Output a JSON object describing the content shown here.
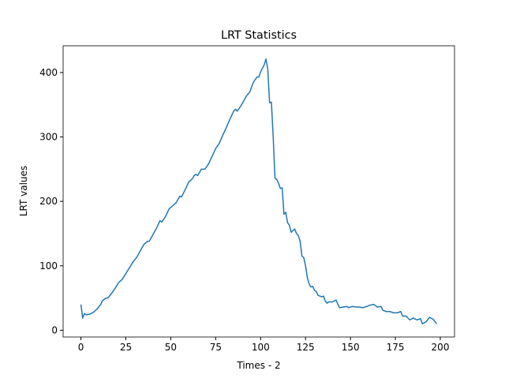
{
  "chart_data": {
    "type": "line",
    "title": "LRT Statistics",
    "x_label": "Times - 2",
    "y_label": "LRT values",
    "x": [
      0,
      1,
      2,
      3,
      5,
      7,
      9,
      11,
      12,
      14,
      15,
      17,
      19,
      21,
      23,
      25,
      27,
      29,
      31,
      33,
      35,
      37,
      38,
      40,
      42,
      44,
      45,
      47,
      49,
      51,
      53,
      55,
      56,
      58,
      60,
      62,
      63,
      64,
      65,
      67,
      69,
      71,
      73,
      75,
      77,
      79,
      81,
      83,
      85,
      86,
      87,
      89,
      91,
      92,
      94,
      96,
      98,
      99,
      100,
      102,
      103,
      104,
      105,
      106,
      107,
      108,
      109,
      110,
      111,
      112,
      113,
      114,
      115,
      116,
      117,
      118,
      119,
      120,
      121,
      122,
      123,
      124,
      125,
      126,
      127,
      128,
      129,
      130,
      131,
      132,
      133,
      134,
      135,
      136,
      137,
      138,
      140,
      142,
      143,
      144,
      146,
      148,
      149,
      151,
      153,
      155,
      157,
      159,
      161,
      163,
      165,
      167,
      168,
      170,
      172,
      174,
      176,
      178,
      179,
      181,
      183,
      185,
      187,
      189,
      190,
      192,
      194,
      196,
      198
    ],
    "series": [
      {
        "color": "#1f77b4",
        "values": [
          40,
          19,
          26,
          24,
          25,
          28,
          33,
          40,
          46,
          50,
          50,
          57,
          65,
          74,
          79,
          88,
          97,
          106,
          113,
          123,
          133,
          138,
          138,
          148,
          158,
          170,
          168,
          176,
          188,
          193,
          198,
          208,
          207,
          218,
          230,
          235,
          240,
          242,
          240,
          250,
          250,
          258,
          270,
          282,
          290,
          303,
          315,
          328,
          340,
          343,
          340,
          348,
          358,
          363,
          370,
          385,
          393,
          393,
          401,
          412,
          421,
          405,
          353,
          354,
          300,
          236,
          234,
          228,
          220,
          221,
          180,
          183,
          167,
          163,
          152,
          155,
          157,
          150,
          147,
          138,
          115,
          113,
          100,
          82,
          72,
          67,
          68,
          62,
          60,
          54,
          53,
          52,
          53,
          45,
          42,
          44,
          44,
          47,
          40,
          35,
          36,
          37,
          35,
          37,
          36,
          36,
          35,
          37,
          39,
          40,
          36,
          37,
          31,
          29,
          29,
          27,
          27,
          29,
          22,
          22,
          16,
          19,
          16,
          18,
          10,
          13,
          20,
          17,
          10
        ]
      }
    ],
    "xlim": [
      -9.9,
      207.9
    ],
    "ylim": [
      -10.5,
      441.5
    ],
    "xticks": [
      0,
      25,
      50,
      75,
      100,
      125,
      150,
      175,
      200
    ],
    "yticks": [
      0,
      100,
      200,
      300,
      400
    ]
  }
}
